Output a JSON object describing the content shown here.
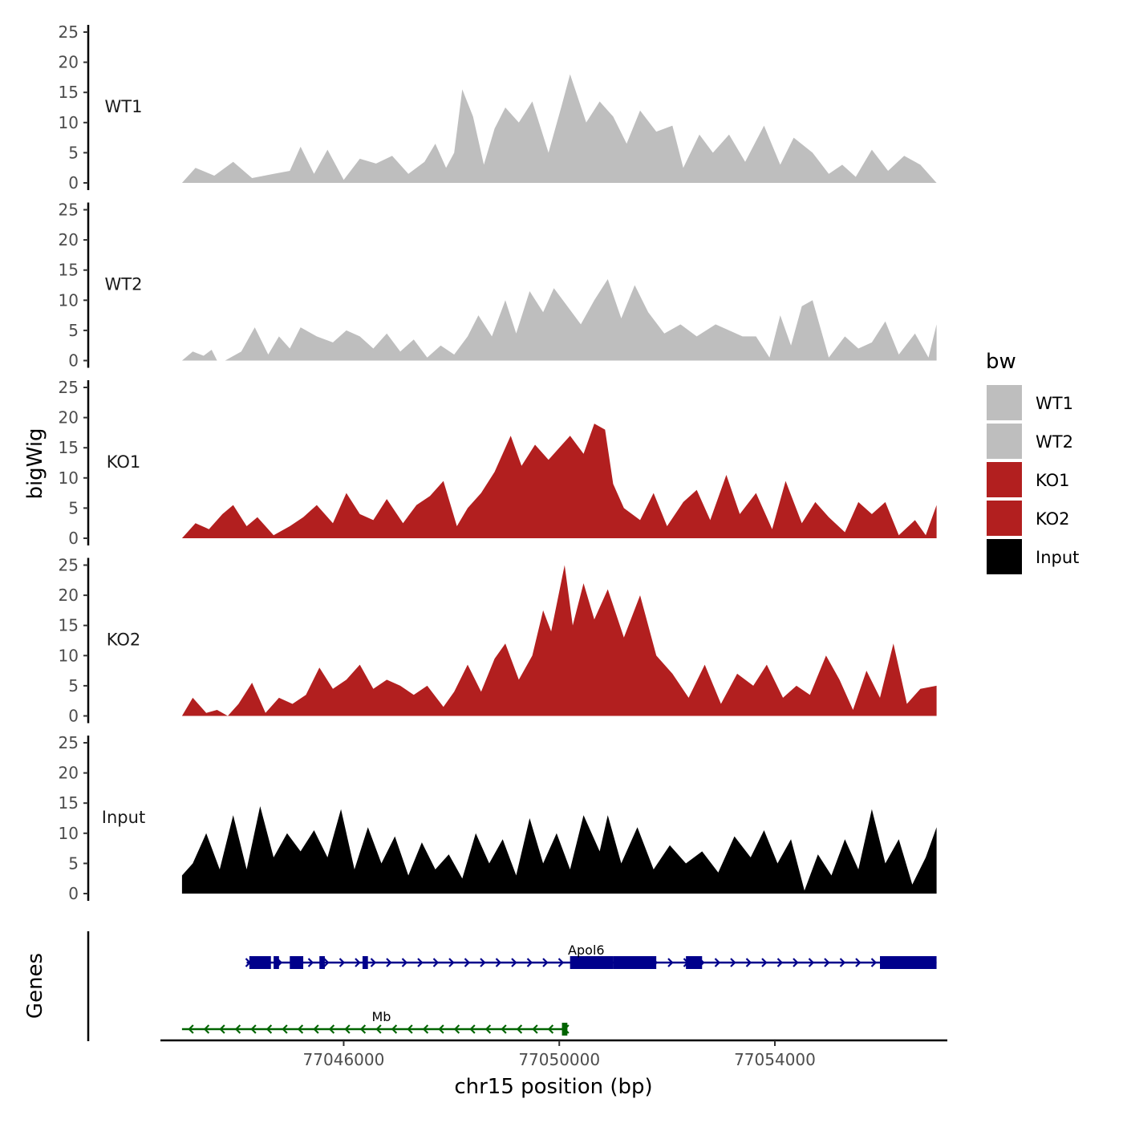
{
  "chart_data": {
    "type": "area",
    "ylabel": "bigWig",
    "xlabel": "chr15 position (bp)",
    "xlim": [
      77042600,
      77057200
    ],
    "ylim": [
      0,
      25
    ],
    "y_ticks": [
      "0",
      "5",
      "10",
      "15",
      "20",
      "25"
    ],
    "x_ticks": [
      {
        "value": 77046000,
        "label": "77046000"
      },
      {
        "value": 77050000,
        "label": "77050000"
      },
      {
        "value": 77054000,
        "label": "77054000"
      }
    ],
    "legend": {
      "title": "bw",
      "items": [
        {
          "label": "WT1",
          "color": "#bebebe"
        },
        {
          "label": "WT2",
          "color": "#bebebe"
        },
        {
          "label": "KO1",
          "color": "#b21f1f"
        },
        {
          "label": "KO2",
          "color": "#b21f1f"
        },
        {
          "label": "Input",
          "color": "#000000"
        }
      ]
    },
    "tracks": [
      {
        "name": "WT1",
        "color": "#bebebe",
        "x": [
          77043000,
          77043250,
          77043600,
          77043950,
          77044300,
          77044700,
          77045000,
          77045200,
          77045450,
          77045700,
          77046000,
          77046300,
          77046600,
          77046900,
          77047200,
          77047500,
          77047700,
          77047900,
          77048050,
          77048200,
          77048400,
          77048600,
          77048800,
          77049000,
          77049250,
          77049500,
          77049800,
          77050050,
          77050200,
          77050500,
          77050750,
          77051000,
          77051250,
          77051500,
          77051800,
          77052100,
          77052300,
          77052600,
          77052850,
          77053150,
          77053450,
          77053800,
          77054100,
          77054350,
          77054700,
          77055000,
          77055250,
          77055500,
          77055800,
          77056100,
          77056400,
          77056700,
          77057000
        ],
        "y": [
          0,
          2.5,
          1.2,
          3.5,
          0.8,
          1.5,
          2,
          6,
          1.5,
          5.5,
          0.5,
          4,
          3.2,
          4.5,
          1.5,
          3.5,
          6.5,
          2.5,
          5,
          15.5,
          11,
          3,
          9,
          12.5,
          10,
          13.5,
          5,
          13,
          18,
          10,
          13.5,
          11,
          6.5,
          12,
          8.5,
          9.5,
          2.5,
          8,
          5,
          8,
          3.5,
          9.5,
          3,
          7.5,
          5,
          1.5,
          3,
          1,
          5.5,
          2,
          4.5,
          3,
          0
        ]
      },
      {
        "name": "WT2",
        "color": "#bebebe",
        "x": [
          77043000,
          77043200,
          77043400,
          77043550,
          77043650,
          77043800,
          77044100,
          77044350,
          77044600,
          77044800,
          77045000,
          77045200,
          77045500,
          77045800,
          77046050,
          77046300,
          77046550,
          77046800,
          77047050,
          77047300,
          77047550,
          77047800,
          77048050,
          77048300,
          77048500,
          77048750,
          77049000,
          77049200,
          77049450,
          77049700,
          77049900,
          77050150,
          77050400,
          77050650,
          77050900,
          77051150,
          77051400,
          77051650,
          77051950,
          77052250,
          77052550,
          77052900,
          77053150,
          77053400,
          77053650,
          77053900,
          77054100,
          77054300,
          77054500,
          77054700,
          77055000,
          77055300,
          77055550,
          77055800,
          77056050,
          77056300,
          77056600,
          77056850,
          77057000
        ],
        "y": [
          0,
          1.5,
          0.8,
          1.8,
          0,
          0,
          1.5,
          5.5,
          1,
          4,
          2,
          5.5,
          4,
          3,
          5,
          4,
          2,
          4.5,
          1.5,
          3.5,
          0.5,
          2.5,
          1,
          4,
          7.5,
          4,
          10,
          4.5,
          11.5,
          8,
          12,
          9,
          6,
          10,
          13.5,
          7,
          12.5,
          8,
          4.5,
          6,
          4,
          6,
          5,
          4,
          4,
          0.5,
          7.5,
          2.5,
          9,
          10,
          0.5,
          4,
          2,
          3,
          6.5,
          1,
          4.5,
          0.5,
          6
        ]
      },
      {
        "name": "KO1",
        "color": "#b21f1f",
        "x": [
          77043000,
          77043250,
          77043500,
          77043750,
          77043950,
          77044200,
          77044400,
          77044700,
          77045000,
          77045250,
          77045500,
          77045800,
          77046050,
          77046300,
          77046550,
          77046800,
          77047100,
          77047350,
          77047600,
          77047850,
          77048100,
          77048300,
          77048550,
          77048800,
          77049100,
          77049300,
          77049550,
          77049800,
          77050000,
          77050200,
          77050450,
          77050650,
          77050850,
          77051000,
          77051200,
          77051500,
          77051750,
          77052000,
          77052300,
          77052550,
          77052800,
          77053100,
          77053350,
          77053650,
          77053950,
          77054200,
          77054500,
          77054750,
          77055000,
          77055300,
          77055550,
          77055800,
          77056050,
          77056300,
          77056600,
          77056800,
          77057000
        ],
        "y": [
          0,
          2.5,
          1.5,
          4,
          5.5,
          2,
          3.5,
          0.5,
          2,
          3.5,
          5.5,
          2.5,
          7.5,
          4,
          3,
          6.5,
          2.5,
          5.5,
          7,
          9.5,
          2,
          5,
          7.5,
          11,
          17,
          12,
          15.5,
          13,
          15,
          17,
          14,
          19,
          18,
          9,
          5,
          3,
          7.5,
          2,
          6,
          8,
          3,
          10.5,
          4,
          7.5,
          1.5,
          9.5,
          2.5,
          6,
          3.5,
          1,
          6,
          4,
          6,
          0.5,
          3,
          0.5,
          5.5
        ]
      },
      {
        "name": "KO2",
        "color": "#b21f1f",
        "x": [
          77043000,
          77043200,
          77043450,
          77043650,
          77043850,
          77044050,
          77044300,
          77044550,
          77044800,
          77045050,
          77045300,
          77045550,
          77045800,
          77046050,
          77046300,
          77046550,
          77046800,
          77047050,
          77047300,
          77047550,
          77047850,
          77048050,
          77048300,
          77048550,
          77048800,
          77049000,
          77049250,
          77049500,
          77049700,
          77049850,
          77050100,
          77050250,
          77050450,
          77050650,
          77050900,
          77051200,
          77051500,
          77051800,
          77052100,
          77052400,
          77052700,
          77053000,
          77053300,
          77053600,
          77053850,
          77054150,
          77054400,
          77054650,
          77054950,
          77055200,
          77055450,
          77055700,
          77055950,
          77056200,
          77056450,
          77056700,
          77057000
        ],
        "y": [
          0,
          3,
          0.5,
          1,
          0,
          2,
          5.5,
          0.5,
          3,
          2,
          3.5,
          8,
          4.5,
          6,
          8.5,
          4.5,
          6,
          5,
          3.5,
          5,
          1.5,
          4,
          8.5,
          4,
          9.5,
          12,
          6,
          10,
          17.5,
          14,
          25,
          15,
          22,
          16,
          21,
          13,
          20,
          10,
          7,
          3,
          8.5,
          2,
          7,
          5,
          8.5,
          3,
          5,
          3.5,
          10,
          6,
          1,
          7.5,
          3,
          12,
          2,
          4.5,
          5
        ]
      },
      {
        "name": "Input",
        "color": "#000000",
        "x": [
          77043000,
          77043200,
          77043450,
          77043700,
          77043950,
          77044200,
          77044450,
          77044700,
          77044950,
          77045200,
          77045450,
          77045700,
          77045950,
          77046200,
          77046450,
          77046700,
          77046950,
          77047200,
          77047450,
          77047700,
          77047950,
          77048200,
          77048450,
          77048700,
          77048950,
          77049200,
          77049450,
          77049700,
          77049950,
          77050200,
          77050450,
          77050750,
          77050900,
          77051150,
          77051450,
          77051750,
          77052050,
          77052350,
          77052650,
          77052950,
          77053250,
          77053550,
          77053800,
          77054050,
          77054300,
          77054550,
          77054800,
          77055050,
          77055300,
          77055550,
          77055800,
          77056050,
          77056300,
          77056550,
          77056800,
          77057000
        ],
        "y": [
          3,
          5,
          10,
          4,
          13,
          4,
          14.5,
          6,
          10,
          7,
          10.5,
          6,
          14,
          4,
          11,
          5,
          9.5,
          3,
          8.5,
          4,
          6.5,
          2.5,
          10,
          5,
          9,
          3,
          12.5,
          5,
          10,
          4,
          13,
          7,
          13,
          5,
          11,
          4,
          8,
          5,
          7,
          3.5,
          9.5,
          6,
          10.5,
          5,
          9,
          0.5,
          6.5,
          3,
          9,
          4,
          14,
          5,
          9,
          1.5,
          6,
          11
        ]
      }
    ],
    "genes": [
      {
        "name": "Apol6",
        "strand": "+",
        "color": "#00008b",
        "start": 77044200,
        "end": 77057000,
        "exons": [
          [
            77044250,
            77044650
          ],
          [
            77044700,
            77044800
          ],
          [
            77045000,
            77045250
          ],
          [
            77045550,
            77045650
          ],
          [
            77046350,
            77046450
          ],
          [
            77050200,
            77051000
          ],
          [
            77051000,
            77051800
          ],
          [
            77052350,
            77052650
          ],
          [
            77055950,
            77057000
          ]
        ]
      },
      {
        "name": "Mb",
        "strand": "-",
        "color": "#006400",
        "start": 77043000,
        "end": 77050150,
        "exons": [
          [
            77050050,
            77050150
          ]
        ]
      }
    ],
    "gene_panel_label": "Genes"
  }
}
